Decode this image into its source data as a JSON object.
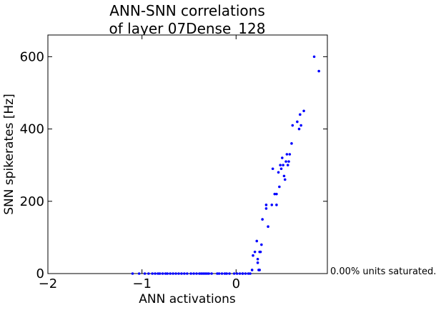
{
  "chart_data": {
    "type": "scatter",
    "title": [
      "ANN-SNN correlations",
      "of layer 07Dense_128"
    ],
    "xlabel": "ANN activations",
    "ylabel": "SNN spikerates [Hz]",
    "xlim": [
      -2,
      0.97
    ],
    "ylim": [
      0,
      660
    ],
    "xticks": [
      -2,
      -1,
      0
    ],
    "xtick_labels": [
      "−2",
      "−1",
      "0"
    ],
    "yticks": [
      0,
      200,
      400,
      600
    ],
    "ytick_labels": [
      "0",
      "200",
      "400",
      "600"
    ],
    "grid": false,
    "marker_color": "#0000ff",
    "annotation": "0.00% units saturated.",
    "points": [
      [
        -1.1,
        0
      ],
      [
        -1.03,
        0
      ],
      [
        -0.97,
        0
      ],
      [
        -0.93,
        0
      ],
      [
        -0.89,
        0
      ],
      [
        -0.86,
        0
      ],
      [
        -0.83,
        0
      ],
      [
        -0.81,
        0
      ],
      [
        -0.78,
        0
      ],
      [
        -0.75,
        0
      ],
      [
        -0.73,
        0
      ],
      [
        -0.7,
        0
      ],
      [
        -0.67,
        0
      ],
      [
        -0.64,
        0
      ],
      [
        -0.61,
        0
      ],
      [
        -0.58,
        0
      ],
      [
        -0.55,
        0
      ],
      [
        -0.52,
        0
      ],
      [
        -0.48,
        0
      ],
      [
        -0.45,
        0
      ],
      [
        -0.42,
        0
      ],
      [
        -0.39,
        0
      ],
      [
        -0.37,
        0
      ],
      [
        -0.35,
        0
      ],
      [
        -0.33,
        0
      ],
      [
        -0.31,
        0
      ],
      [
        -0.29,
        0
      ],
      [
        -0.26,
        0
      ],
      [
        -0.2,
        0
      ],
      [
        -0.18,
        0
      ],
      [
        -0.15,
        0
      ],
      [
        -0.12,
        0
      ],
      [
        -0.1,
        0
      ],
      [
        -0.07,
        0
      ],
      [
        -0.02,
        0
      ],
      [
        0.01,
        0
      ],
      [
        0.04,
        0
      ],
      [
        0.07,
        0
      ],
      [
        0.1,
        0
      ],
      [
        0.13,
        0
      ],
      [
        0.07,
        0
      ],
      [
        0.15,
        0
      ],
      [
        0.17,
        10
      ],
      [
        0.18,
        50
      ],
      [
        0.2,
        60
      ],
      [
        0.22,
        90
      ],
      [
        0.23,
        30
      ],
      [
        0.23,
        40
      ],
      [
        0.24,
        10
      ],
      [
        0.25,
        10
      ],
      [
        0.25,
        60
      ],
      [
        0.26,
        60
      ],
      [
        0.27,
        80
      ],
      [
        0.28,
        150
      ],
      [
        0.32,
        180
      ],
      [
        0.32,
        190
      ],
      [
        0.34,
        130
      ],
      [
        0.38,
        190
      ],
      [
        0.39,
        290
      ],
      [
        0.41,
        220
      ],
      [
        0.43,
        190
      ],
      [
        0.43,
        220
      ],
      [
        0.45,
        280
      ],
      [
        0.46,
        240
      ],
      [
        0.47,
        300
      ],
      [
        0.48,
        290
      ],
      [
        0.49,
        320
      ],
      [
        0.5,
        300
      ],
      [
        0.51,
        270
      ],
      [
        0.52,
        260
      ],
      [
        0.53,
        310
      ],
      [
        0.54,
        330
      ],
      [
        0.55,
        300
      ],
      [
        0.56,
        310
      ],
      [
        0.57,
        330
      ],
      [
        0.59,
        360
      ],
      [
        0.6,
        410
      ],
      [
        0.65,
        420
      ],
      [
        0.67,
        400
      ],
      [
        0.69,
        410
      ],
      [
        0.68,
        440
      ],
      [
        0.72,
        450
      ],
      [
        0.83,
        600
      ],
      [
        0.88,
        560
      ]
    ]
  }
}
